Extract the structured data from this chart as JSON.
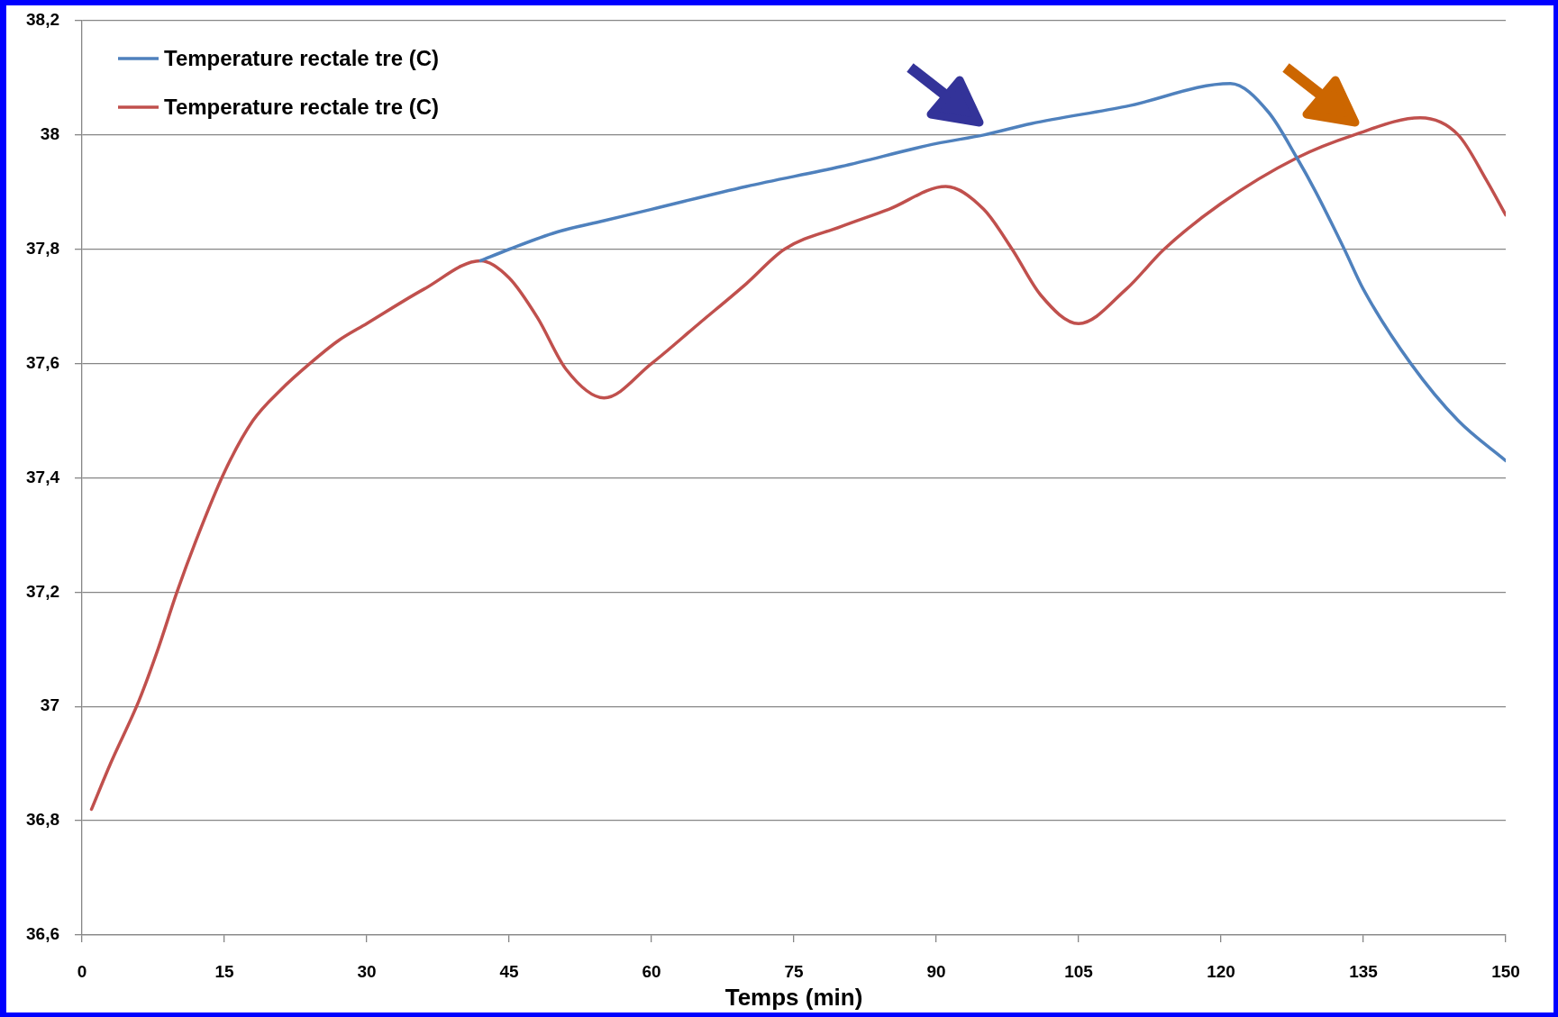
{
  "chart_data": {
    "type": "line",
    "xlabel": "Temps (min)",
    "series": [
      {
        "name": "Temperature rectale tre (C)",
        "color": "#4f81bd",
        "x": [
          42,
          45,
          50,
          55,
          60,
          70,
          80,
          90,
          95,
          100,
          110,
          121,
          125,
          128,
          130,
          133,
          135,
          140,
          145,
          150
        ],
        "values": [
          37.78,
          37.8,
          37.83,
          37.85,
          37.87,
          37.91,
          37.945,
          37.985,
          38.0,
          38.02,
          38.05,
          38.09,
          38.04,
          37.96,
          37.9,
          37.8,
          37.73,
          37.6,
          37.5,
          37.43
        ]
      },
      {
        "name": "Temperature rectale tre (C)",
        "color": "#c0504d",
        "x": [
          1,
          3,
          6,
          8,
          10,
          12,
          15,
          18,
          21,
          24,
          27,
          30,
          36,
          42,
          45,
          48,
          51,
          55,
          60,
          65,
          70,
          74,
          80,
          85,
          91,
          95,
          98,
          101,
          105,
          110,
          114,
          120,
          128,
          134,
          141,
          145,
          148,
          150
        ],
        "values": [
          36.82,
          36.9,
          37.01,
          37.1,
          37.2,
          37.29,
          37.41,
          37.5,
          37.555,
          37.6,
          37.64,
          37.67,
          37.73,
          37.78,
          37.75,
          37.68,
          37.59,
          37.54,
          37.6,
          37.67,
          37.74,
          37.8,
          37.84,
          37.87,
          37.91,
          37.87,
          37.8,
          37.72,
          37.67,
          37.73,
          37.8,
          37.88,
          37.96,
          38.0,
          38.03,
          38.0,
          37.92,
          37.86
        ]
      }
    ],
    "xlim": [
      0,
      150
    ],
    "xticks": [
      0,
      15,
      30,
      45,
      60,
      75,
      90,
      105,
      120,
      135,
      150
    ],
    "ylim": [
      36.6,
      38.2
    ],
    "yticks": [
      {
        "value": 36.6,
        "label": "36,6"
      },
      {
        "value": 36.8,
        "label": "36,8"
      },
      37,
      {
        "value": 37.2,
        "label": "37,2"
      },
      {
        "value": 37.4,
        "label": "37,4"
      },
      {
        "value": 37.6,
        "label": "37,6"
      },
      {
        "value": 37.8,
        "label": "37,8"
      },
      38,
      {
        "value": 38.2,
        "label": "38,2"
      }
    ],
    "grid": "y",
    "legend": "top left",
    "marker": "none",
    "line_style": "solid"
  }
}
